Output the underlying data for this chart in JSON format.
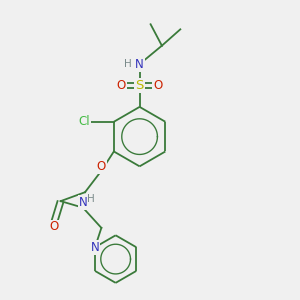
{
  "bg_color": "#f0f0f0",
  "bond_color": "#3a7a3a",
  "n_color": "#3333bb",
  "o_color": "#cc2200",
  "s_color": "#bbbb00",
  "cl_color": "#44bb44",
  "h_color": "#7a8a8a",
  "line_width": 1.3,
  "font_size": 8.5,
  "fig_w": 3.0,
  "fig_h": 3.0,
  "dpi": 100,
  "xlim": [
    0,
    10
  ],
  "ylim": [
    0,
    10
  ]
}
